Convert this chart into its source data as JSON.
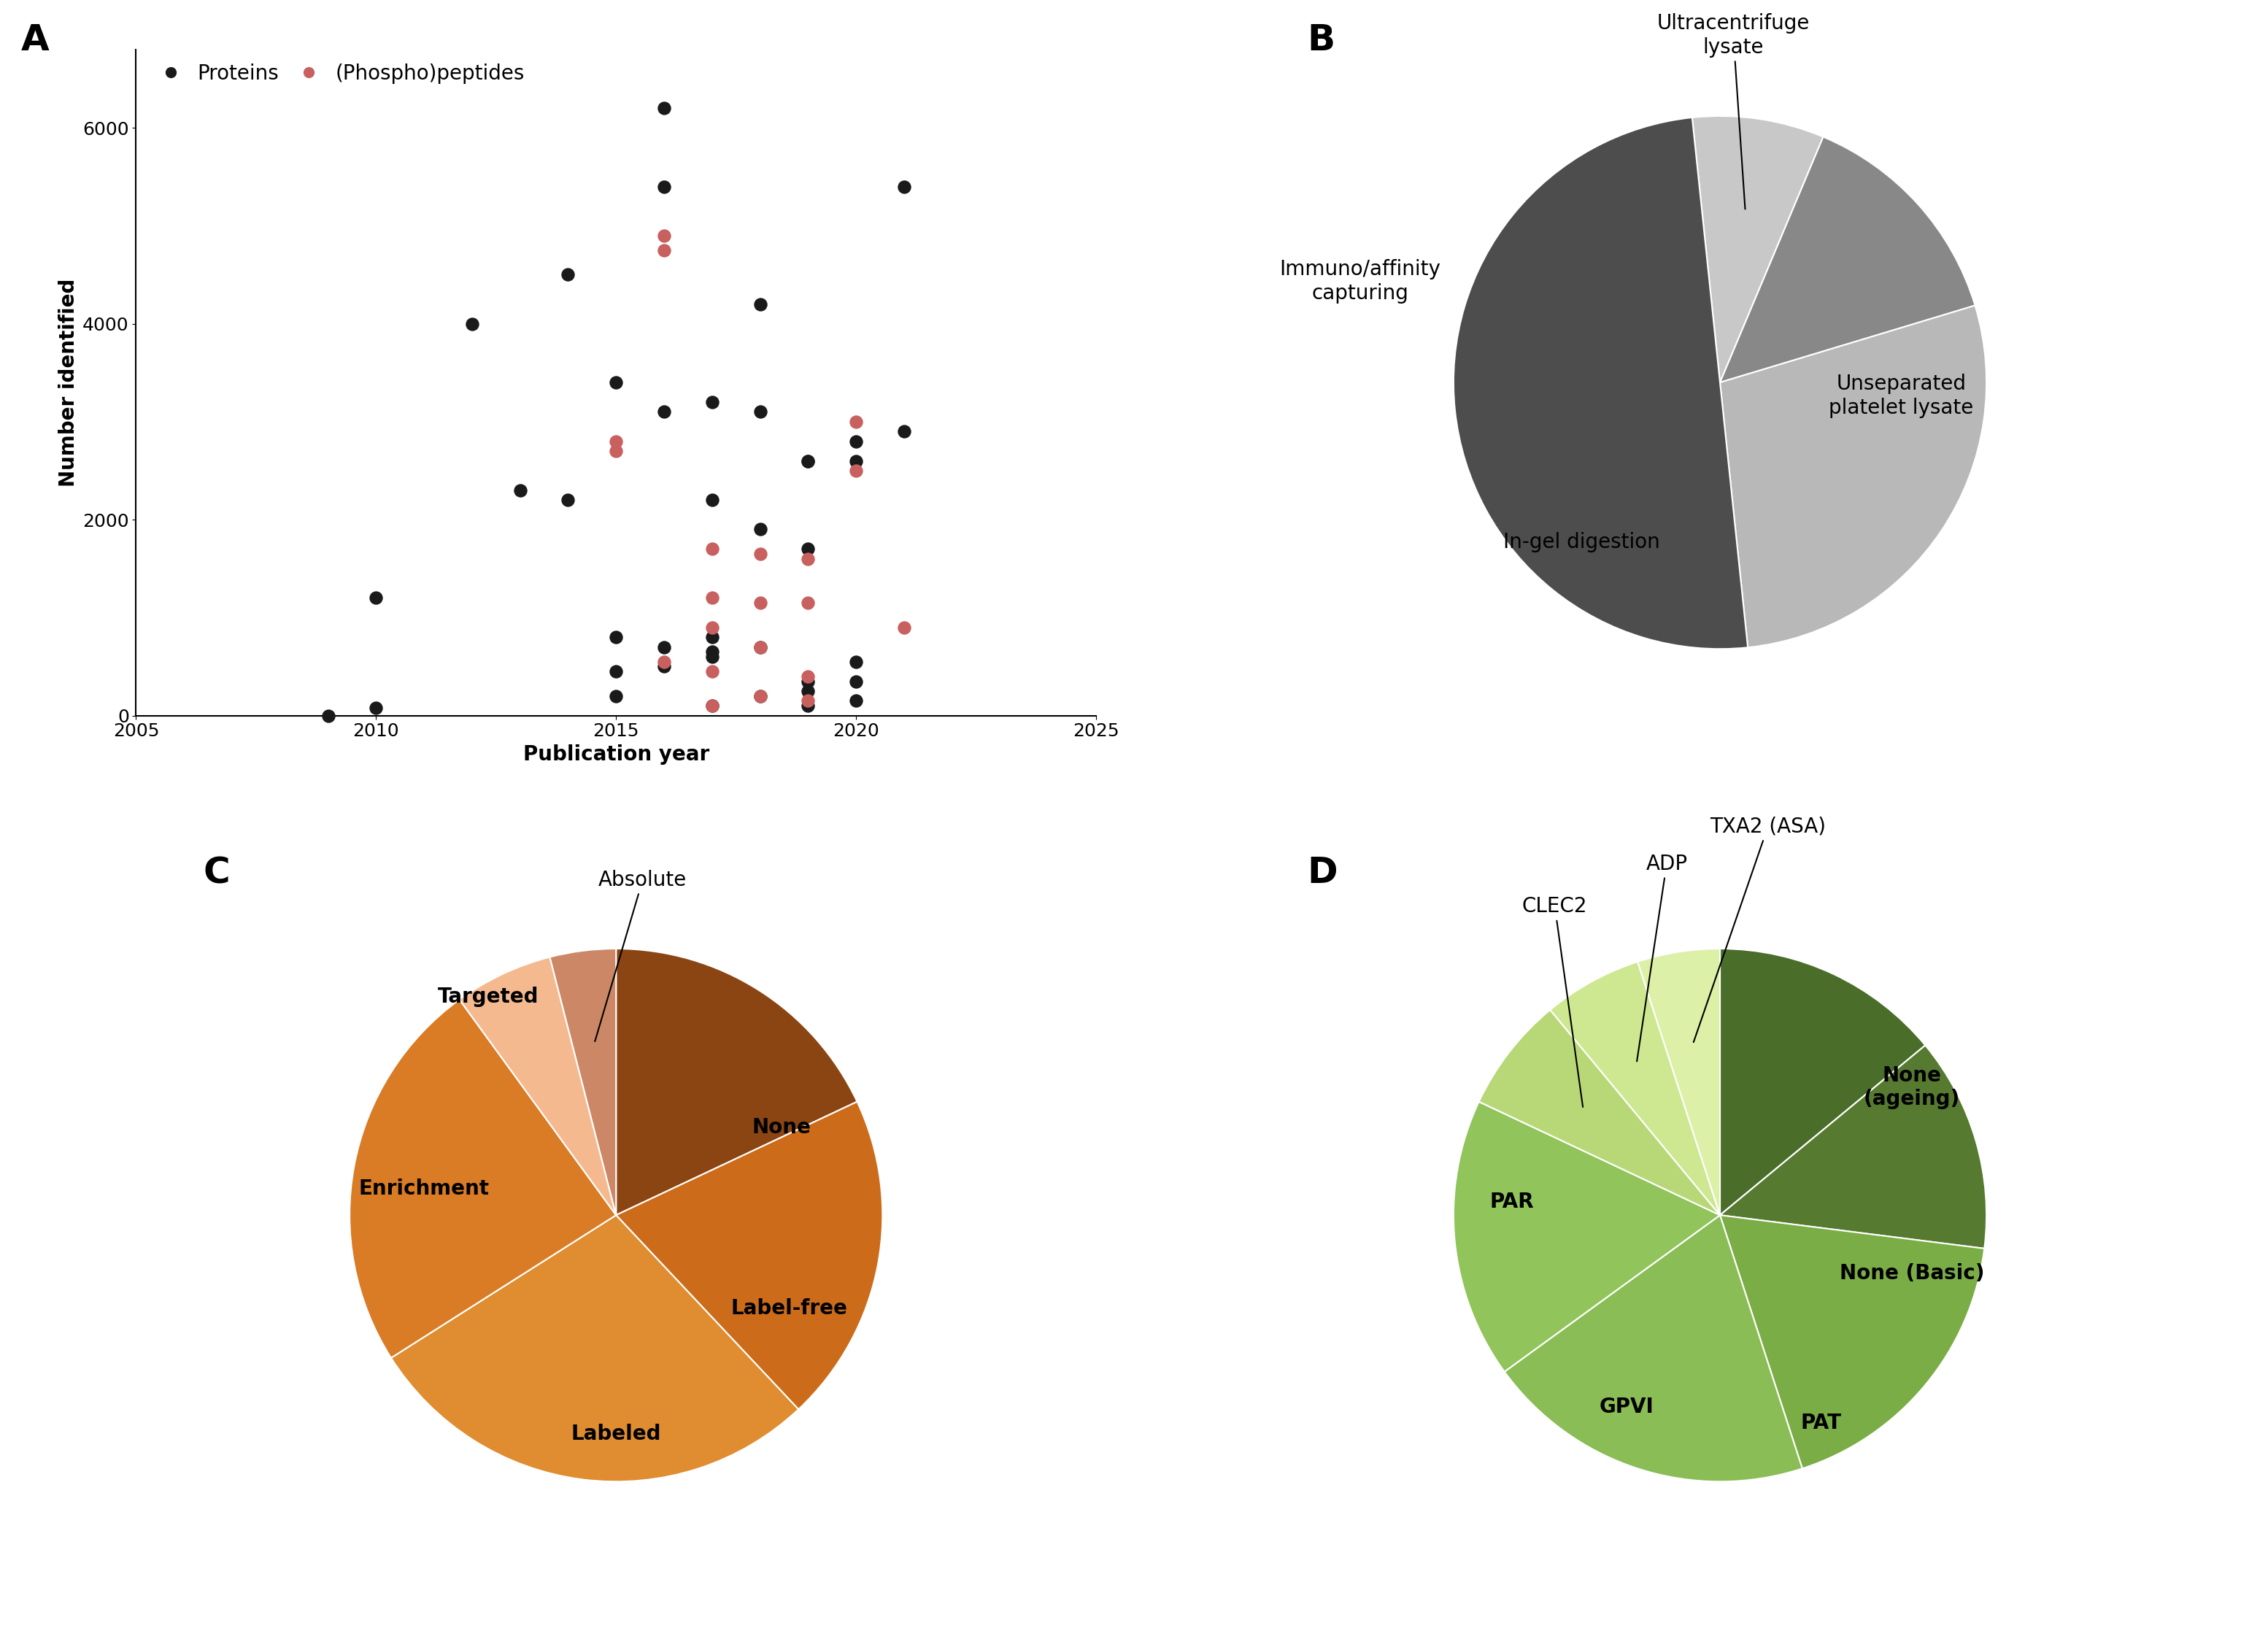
{
  "scatter_proteins_x": [
    2009,
    2010,
    2010,
    2012,
    2013,
    2014,
    2014,
    2015,
    2015,
    2015,
    2015,
    2016,
    2016,
    2016,
    2016,
    2016,
    2017,
    2017,
    2017,
    2017,
    2017,
    2017,
    2018,
    2018,
    2018,
    2018,
    2018,
    2019,
    2019,
    2019,
    2019,
    2019,
    2019,
    2020,
    2020,
    2020,
    2020,
    2020,
    2021,
    2021
  ],
  "scatter_proteins_y": [
    0,
    80,
    1200,
    4000,
    2300,
    4500,
    2200,
    3400,
    800,
    450,
    200,
    6200,
    5400,
    3100,
    700,
    500,
    3200,
    2200,
    800,
    650,
    600,
    100,
    4200,
    3100,
    1900,
    700,
    200,
    2600,
    2600,
    1700,
    350,
    250,
    100,
    2800,
    2600,
    550,
    350,
    150,
    5400,
    2900
  ],
  "scatter_phospho_x": [
    2015,
    2015,
    2016,
    2016,
    2016,
    2017,
    2017,
    2017,
    2017,
    2017,
    2018,
    2018,
    2018,
    2018,
    2019,
    2019,
    2019,
    2019,
    2020,
    2020,
    2021
  ],
  "scatter_phospho_y": [
    2800,
    2700,
    4900,
    4750,
    550,
    1700,
    1200,
    900,
    450,
    100,
    1650,
    1150,
    700,
    200,
    1600,
    1150,
    400,
    150,
    3000,
    2500,
    900
  ],
  "scatter_protein_color": "#1a1a1a",
  "scatter_phospho_color": "#c96060",
  "scatter_xlim": [
    2005,
    2025
  ],
  "scatter_ylim": [
    0,
    6800
  ],
  "scatter_yticks": [
    0,
    2000,
    4000,
    6000
  ],
  "scatter_xticks": [
    2005,
    2010,
    2015,
    2020,
    2025
  ],
  "pie_b_sizes": [
    8,
    14,
    28,
    50
  ],
  "pie_b_colors": [
    "#c8c8c8",
    "#888888",
    "#b8b8b8",
    "#4d4d4d"
  ],
  "pie_b_startangle": 96,
  "pie_c_sizes": [
    18,
    20,
    28,
    24,
    6,
    4
  ],
  "pie_c_colors": [
    "#8b4513",
    "#cc6c1a",
    "#e08c30",
    "#d97c25",
    "#f5b990",
    "#cc8866"
  ],
  "pie_c_startangle": 90,
  "pie_d_sizes": [
    14,
    13,
    18,
    20,
    17,
    7,
    6,
    5
  ],
  "pie_d_colors": [
    "#4a6e2a",
    "#567a30",
    "#7aad45",
    "#8abd55",
    "#91c45a",
    "#b8d878",
    "#cde890",
    "#ddf0a8"
  ],
  "pie_d_startangle": 90,
  "label_fontsize": 20,
  "panel_label_fontsize": 36,
  "axis_label_fontsize": 20,
  "tick_fontsize": 18,
  "legend_fontsize": 20,
  "background_color": "#ffffff"
}
